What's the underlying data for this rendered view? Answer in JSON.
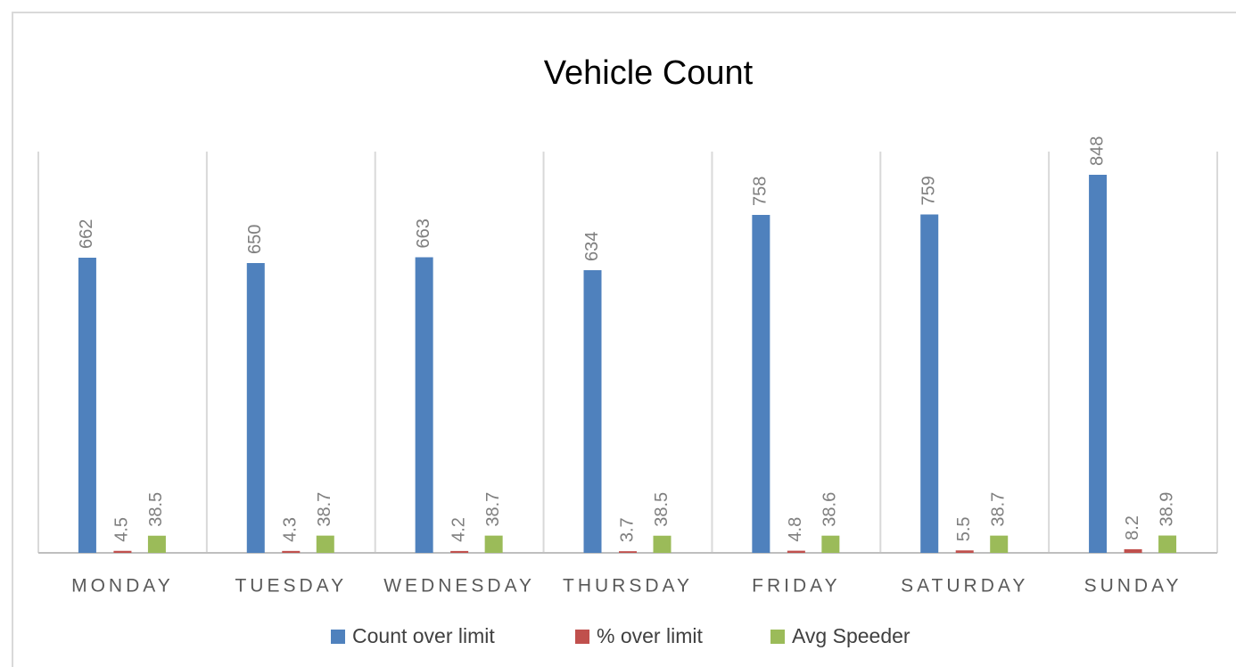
{
  "chart_data": {
    "type": "bar",
    "title": "Vehicle Count",
    "categories": [
      "MONDAY",
      "TUESDAY",
      "WEDNESDAY",
      "THURSDAY",
      "FRIDAY",
      "SATURDAY",
      "SUNDAY"
    ],
    "series": [
      {
        "name": "Count over limit",
        "color": "#4f81bd",
        "values": [
          662,
          650,
          663,
          634,
          758,
          759,
          848
        ]
      },
      {
        "name": "% over limit",
        "color": "#c0504d",
        "values": [
          4.5,
          4.3,
          4.2,
          3.7,
          4.8,
          5.5,
          8.2
        ]
      },
      {
        "name": "Avg Speeder",
        "color": "#9bbb59",
        "values": [
          38.5,
          38.7,
          38.7,
          38.5,
          38.6,
          38.7,
          38.9
        ]
      }
    ],
    "ylim": [
      0,
      900
    ],
    "legend": "bottom"
  }
}
